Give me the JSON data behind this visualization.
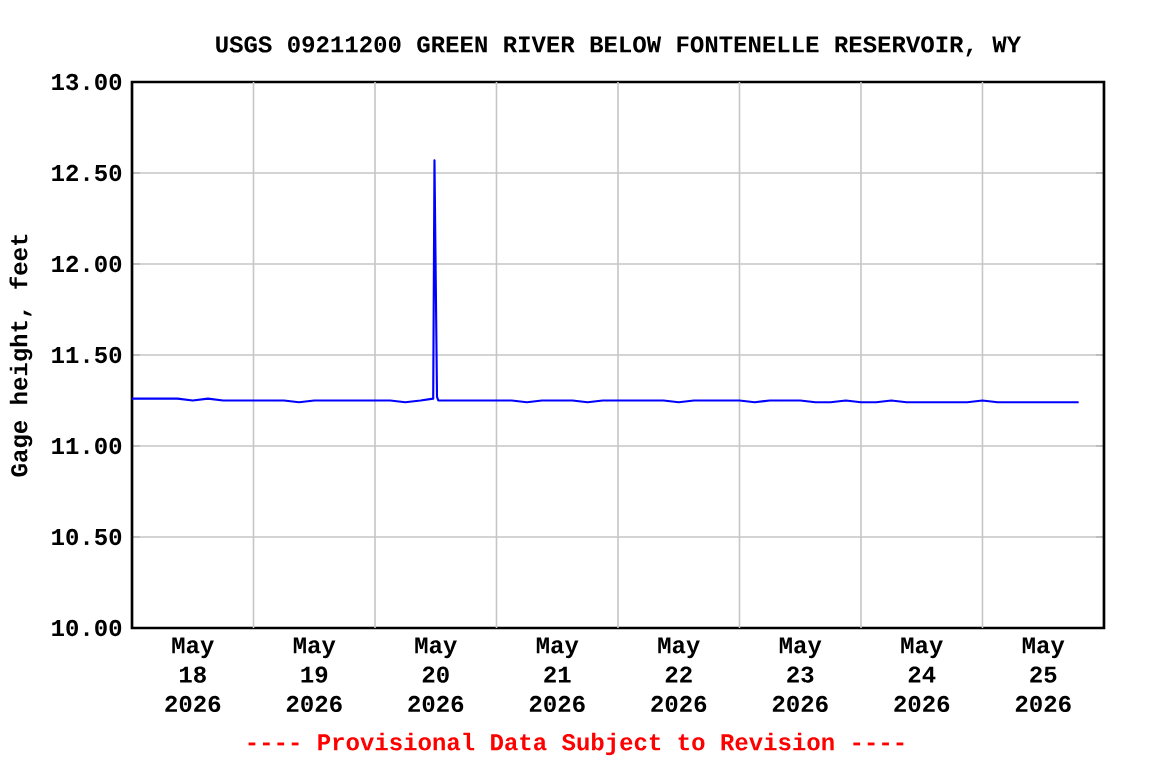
{
  "chart_data": {
    "type": "line",
    "title": "USGS 09211200 GREEN RIVER BELOW FONTENELLE RESERVOIR, WY",
    "ylabel": "Gage height, feet",
    "annotations": [
      "---- Provisional Data Subject to Revision ----"
    ],
    "x": [
      "2026-05-18T00:00",
      "2026-05-18T03:00",
      "2026-05-18T06:00",
      "2026-05-18T09:00",
      "2026-05-18T12:00",
      "2026-05-18T15:00",
      "2026-05-18T18:00",
      "2026-05-18T21:00",
      "2026-05-19T00:00",
      "2026-05-19T03:00",
      "2026-05-19T06:00",
      "2026-05-19T09:00",
      "2026-05-19T12:00",
      "2026-05-19T15:00",
      "2026-05-19T18:00",
      "2026-05-19T21:00",
      "2026-05-20T00:00",
      "2026-05-20T03:00",
      "2026-05-20T06:00",
      "2026-05-20T09:00",
      "2026-05-20T11:30",
      "2026-05-20T11:45",
      "2026-05-20T12:00",
      "2026-05-20T12:15",
      "2026-05-20T12:30",
      "2026-05-20T15:00",
      "2026-05-20T18:00",
      "2026-05-20T21:00",
      "2026-05-21T00:00",
      "2026-05-21T03:00",
      "2026-05-21T06:00",
      "2026-05-21T09:00",
      "2026-05-21T12:00",
      "2026-05-21T15:00",
      "2026-05-21T18:00",
      "2026-05-21T21:00",
      "2026-05-22T00:00",
      "2026-05-22T03:00",
      "2026-05-22T06:00",
      "2026-05-22T09:00",
      "2026-05-22T12:00",
      "2026-05-22T15:00",
      "2026-05-22T18:00",
      "2026-05-22T21:00",
      "2026-05-23T00:00",
      "2026-05-23T03:00",
      "2026-05-23T06:00",
      "2026-05-23T09:00",
      "2026-05-23T12:00",
      "2026-05-23T15:00",
      "2026-05-23T18:00",
      "2026-05-23T21:00",
      "2026-05-24T00:00",
      "2026-05-24T03:00",
      "2026-05-24T06:00",
      "2026-05-24T09:00",
      "2026-05-24T12:00",
      "2026-05-24T15:00",
      "2026-05-24T18:00",
      "2026-05-24T21:00",
      "2026-05-25T00:00",
      "2026-05-25T03:00",
      "2026-05-25T06:00",
      "2026-05-25T09:00",
      "2026-05-25T12:00",
      "2026-05-25T15:00",
      "2026-05-25T19:00"
    ],
    "series": [
      {
        "color": "#0000ff",
        "values": [
          11.26,
          11.26,
          11.26,
          11.26,
          11.25,
          11.26,
          11.25,
          11.25,
          11.25,
          11.25,
          11.25,
          11.24,
          11.25,
          11.25,
          11.25,
          11.25,
          11.25,
          11.25,
          11.24,
          11.25,
          11.26,
          12.57,
          11.92,
          11.27,
          11.25,
          11.25,
          11.25,
          11.25,
          11.25,
          11.25,
          11.24,
          11.25,
          11.25,
          11.25,
          11.24,
          11.25,
          11.25,
          11.25,
          11.25,
          11.25,
          11.24,
          11.25,
          11.25,
          11.25,
          11.25,
          11.24,
          11.25,
          11.25,
          11.25,
          11.24,
          11.24,
          11.25,
          11.24,
          11.24,
          11.25,
          11.24,
          11.24,
          11.24,
          11.24,
          11.24,
          11.25,
          11.24,
          11.24,
          11.24,
          11.24,
          11.24,
          11.24
        ]
      }
    ],
    "xlim": [
      "2026-05-18",
      "2026-05-26"
    ],
    "xticks": [
      {
        "value": "2026-05-18T12:00",
        "label": "May 18 2026"
      },
      {
        "value": "2026-05-19T12:00",
        "label": "May 19 2026"
      },
      {
        "value": "2026-05-20T12:00",
        "label": "May 20 2026"
      },
      {
        "value": "2026-05-21T12:00",
        "label": "May 21 2026"
      },
      {
        "value": "2026-05-22T12:00",
        "label": "May 22 2026"
      },
      {
        "value": "2026-05-23T12:00",
        "label": "May 23 2026"
      },
      {
        "value": "2026-05-24T12:00",
        "label": "May 24 2026"
      },
      {
        "value": "2026-05-25T12:00",
        "label": "May 25 2026"
      },
      {
        "value": "2026-05-19",
        "label": null
      },
      {
        "value": "2026-05-20",
        "label": null
      },
      {
        "value": "2026-05-21",
        "label": null
      },
      {
        "value": "2026-05-22",
        "label": null
      },
      {
        "value": "2026-05-23",
        "label": null
      },
      {
        "value": "2026-05-24",
        "label": null
      },
      {
        "value": "2026-05-25",
        "label": null
      }
    ],
    "ylim": [
      10,
      13
    ],
    "yticks": [
      {
        "value": 10,
        "label": "10.00"
      },
      {
        "value": 10.5,
        "label": "10.50"
      },
      {
        "value": 11,
        "label": "11.00"
      },
      {
        "value": 11.5,
        "label": "11.50"
      },
      {
        "value": 12,
        "label": "12.00"
      },
      {
        "value": 12.5,
        "label": "12.50"
      },
      {
        "value": 13,
        "label": "13.00"
      }
    ],
    "grid": true,
    "marker": "none",
    "line_style": "solid"
  }
}
